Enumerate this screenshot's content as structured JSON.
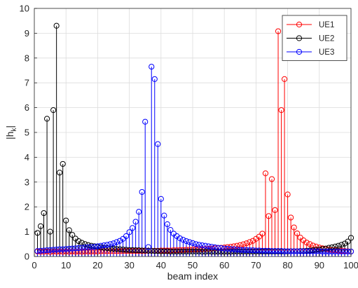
{
  "chart_data": {
    "type": "stem",
    "title": "",
    "xlabel": "beam index",
    "ylabel": "|h_k|",
    "ylabel_main": "|h",
    "ylabel_sub": "k",
    "ylabel_end": "|",
    "xlim": [
      0,
      100
    ],
    "ylim": [
      0,
      10
    ],
    "xticks": [
      0,
      10,
      20,
      30,
      40,
      50,
      60,
      70,
      80,
      90,
      100
    ],
    "yticks": [
      0,
      1,
      2,
      3,
      4,
      5,
      6,
      7,
      8,
      9,
      10
    ],
    "grid": true,
    "legend_position": "top-right",
    "x": [
      1,
      2,
      3,
      4,
      5,
      6,
      7,
      8,
      9,
      10,
      11,
      12,
      13,
      14,
      15,
      16,
      17,
      18,
      19,
      20,
      21,
      22,
      23,
      24,
      25,
      26,
      27,
      28,
      29,
      30,
      31,
      32,
      33,
      34,
      35,
      36,
      37,
      38,
      39,
      40,
      41,
      42,
      43,
      44,
      45,
      46,
      47,
      48,
      49,
      50,
      51,
      52,
      53,
      54,
      55,
      56,
      57,
      58,
      59,
      60,
      61,
      62,
      63,
      64,
      65,
      66,
      67,
      68,
      69,
      70,
      71,
      72,
      73,
      74,
      75,
      76,
      77,
      78,
      79,
      80,
      81,
      82,
      83,
      84,
      85,
      86,
      87,
      88,
      89,
      90,
      91,
      92,
      93,
      94,
      95,
      96,
      97,
      98,
      99,
      100
    ],
    "series": [
      {
        "name": "UE1",
        "color": "#ff0000",
        "values": [
          0.2,
          0.19,
          0.19,
          0.2,
          0.18,
          0.2,
          0.19,
          0.2,
          0.19,
          0.2,
          0.19,
          0.2,
          0.19,
          0.2,
          0.19,
          0.2,
          0.2,
          0.2,
          0.2,
          0.2,
          0.21,
          0.21,
          0.21,
          0.21,
          0.21,
          0.21,
          0.21,
          0.22,
          0.22,
          0.22,
          0.22,
          0.22,
          0.22,
          0.22,
          0.22,
          0.23,
          0.23,
          0.23,
          0.23,
          0.24,
          0.24,
          0.24,
          0.24,
          0.25,
          0.25,
          0.26,
          0.26,
          0.27,
          0.27,
          0.28,
          0.28,
          0.29,
          0.29,
          0.3,
          0.31,
          0.32,
          0.33,
          0.34,
          0.35,
          0.36,
          0.38,
          0.39,
          0.41,
          0.43,
          0.46,
          0.49,
          0.53,
          0.58,
          0.63,
          0.71,
          0.8,
          0.92,
          3.35,
          1.63,
          3.12,
          1.87,
          9.08,
          5.9,
          7.15,
          2.5,
          1.57,
          1.17,
          0.93,
          0.76,
          0.65,
          0.56,
          0.5,
          0.44,
          0.4,
          0.36,
          0.33,
          0.3,
          0.28,
          0.26,
          0.25,
          0.24,
          0.23,
          0.22,
          0.21,
          0.2
        ]
      },
      {
        "name": "UE2",
        "color": "#000000",
        "values": [
          0.95,
          1.22,
          1.75,
          5.55,
          1.0,
          5.9,
          9.3,
          3.38,
          3.73,
          1.45,
          1.06,
          0.87,
          0.72,
          0.62,
          0.55,
          0.5,
          0.46,
          0.43,
          0.41,
          0.39,
          0.37,
          0.35,
          0.34,
          0.32,
          0.31,
          0.3,
          0.29,
          0.28,
          0.27,
          0.26,
          0.26,
          0.25,
          0.25,
          0.24,
          0.24,
          0.23,
          0.23,
          0.22,
          0.22,
          0.21,
          0.21,
          0.21,
          0.2,
          0.2,
          0.2,
          0.2,
          0.2,
          0.2,
          0.2,
          0.2,
          0.2,
          0.2,
          0.19,
          0.19,
          0.2,
          0.19,
          0.19,
          0.19,
          0.19,
          0.19,
          0.19,
          0.19,
          0.2,
          0.2,
          0.2,
          0.2,
          0.2,
          0.2,
          0.2,
          0.2,
          0.2,
          0.2,
          0.2,
          0.2,
          0.2,
          0.2,
          0.2,
          0.2,
          0.2,
          0.2,
          0.21,
          0.21,
          0.21,
          0.22,
          0.22,
          0.23,
          0.24,
          0.25,
          0.27,
          0.28,
          0.3,
          0.32,
          0.35,
          0.37,
          0.4,
          0.43,
          0.47,
          0.52,
          0.6,
          0.75
        ]
      },
      {
        "name": "UE3",
        "color": "#0000ff",
        "values": [
          0.22,
          0.23,
          0.24,
          0.25,
          0.26,
          0.27,
          0.28,
          0.29,
          0.29,
          0.3,
          0.31,
          0.32,
          0.33,
          0.34,
          0.35,
          0.36,
          0.37,
          0.38,
          0.39,
          0.41,
          0.43,
          0.45,
          0.47,
          0.5,
          0.53,
          0.58,
          0.63,
          0.71,
          0.82,
          0.98,
          1.15,
          1.4,
          1.8,
          2.6,
          5.43,
          0.38,
          7.65,
          7.15,
          4.53,
          2.32,
          1.65,
          1.3,
          1.07,
          0.92,
          0.82,
          0.73,
          0.67,
          0.62,
          0.58,
          0.54,
          0.5,
          0.47,
          0.45,
          0.43,
          0.41,
          0.39,
          0.37,
          0.35,
          0.34,
          0.32,
          0.31,
          0.3,
          0.29,
          0.28,
          0.27,
          0.26,
          0.26,
          0.25,
          0.25,
          0.24,
          0.24,
          0.23,
          0.23,
          0.23,
          0.22,
          0.22,
          0.22,
          0.22,
          0.21,
          0.21,
          0.21,
          0.21,
          0.21,
          0.21,
          0.21,
          0.21,
          0.21,
          0.21,
          0.21,
          0.21,
          0.2,
          0.2,
          0.2,
          0.2,
          0.2,
          0.2,
          0.2,
          0.2,
          0.2,
          0.2
        ]
      }
    ]
  }
}
